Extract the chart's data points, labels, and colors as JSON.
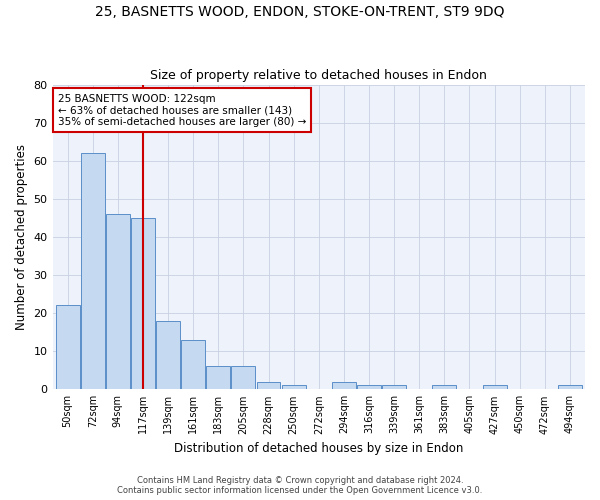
{
  "title1": "25, BASNETTS WOOD, ENDON, STOKE-ON-TRENT, ST9 9DQ",
  "title2": "Size of property relative to detached houses in Endon",
  "xlabel": "Distribution of detached houses by size in Endon",
  "ylabel": "Number of detached properties",
  "bar_labels": [
    "50sqm",
    "72sqm",
    "94sqm",
    "117sqm",
    "139sqm",
    "161sqm",
    "183sqm",
    "205sqm",
    "228sqm",
    "250sqm",
    "272sqm",
    "294sqm",
    "316sqm",
    "339sqm",
    "361sqm",
    "383sqm",
    "405sqm",
    "427sqm",
    "450sqm",
    "472sqm",
    "494sqm"
  ],
  "bar_values": [
    22,
    62,
    46,
    45,
    18,
    13,
    6,
    6,
    2,
    1,
    0,
    2,
    1,
    1,
    0,
    1,
    0,
    1,
    0,
    0,
    1
  ],
  "bar_color": "#c5d9f1",
  "bar_edgecolor": "#5b8fc9",
  "vline_x_index": 3,
  "vline_color": "#cc0000",
  "annotation_line1": "25 BASNETTS WOOD: 122sqm",
  "annotation_line2": "← 63% of detached houses are smaller (143)",
  "annotation_line3": "35% of semi-detached houses are larger (80) →",
  "annotation_box_facecolor": "#ffffff",
  "annotation_box_edgecolor": "#cc0000",
  "ylim_max": 80,
  "yticks": [
    0,
    10,
    20,
    30,
    40,
    50,
    60,
    70,
    80
  ],
  "footer1": "Contains HM Land Registry data © Crown copyright and database right 2024.",
  "footer2": "Contains public sector information licensed under the Open Government Licence v3.0.",
  "bg_color": "#ffffff",
  "plot_bg_color": "#eef2fa",
  "grid_color": "#c8d0e0"
}
